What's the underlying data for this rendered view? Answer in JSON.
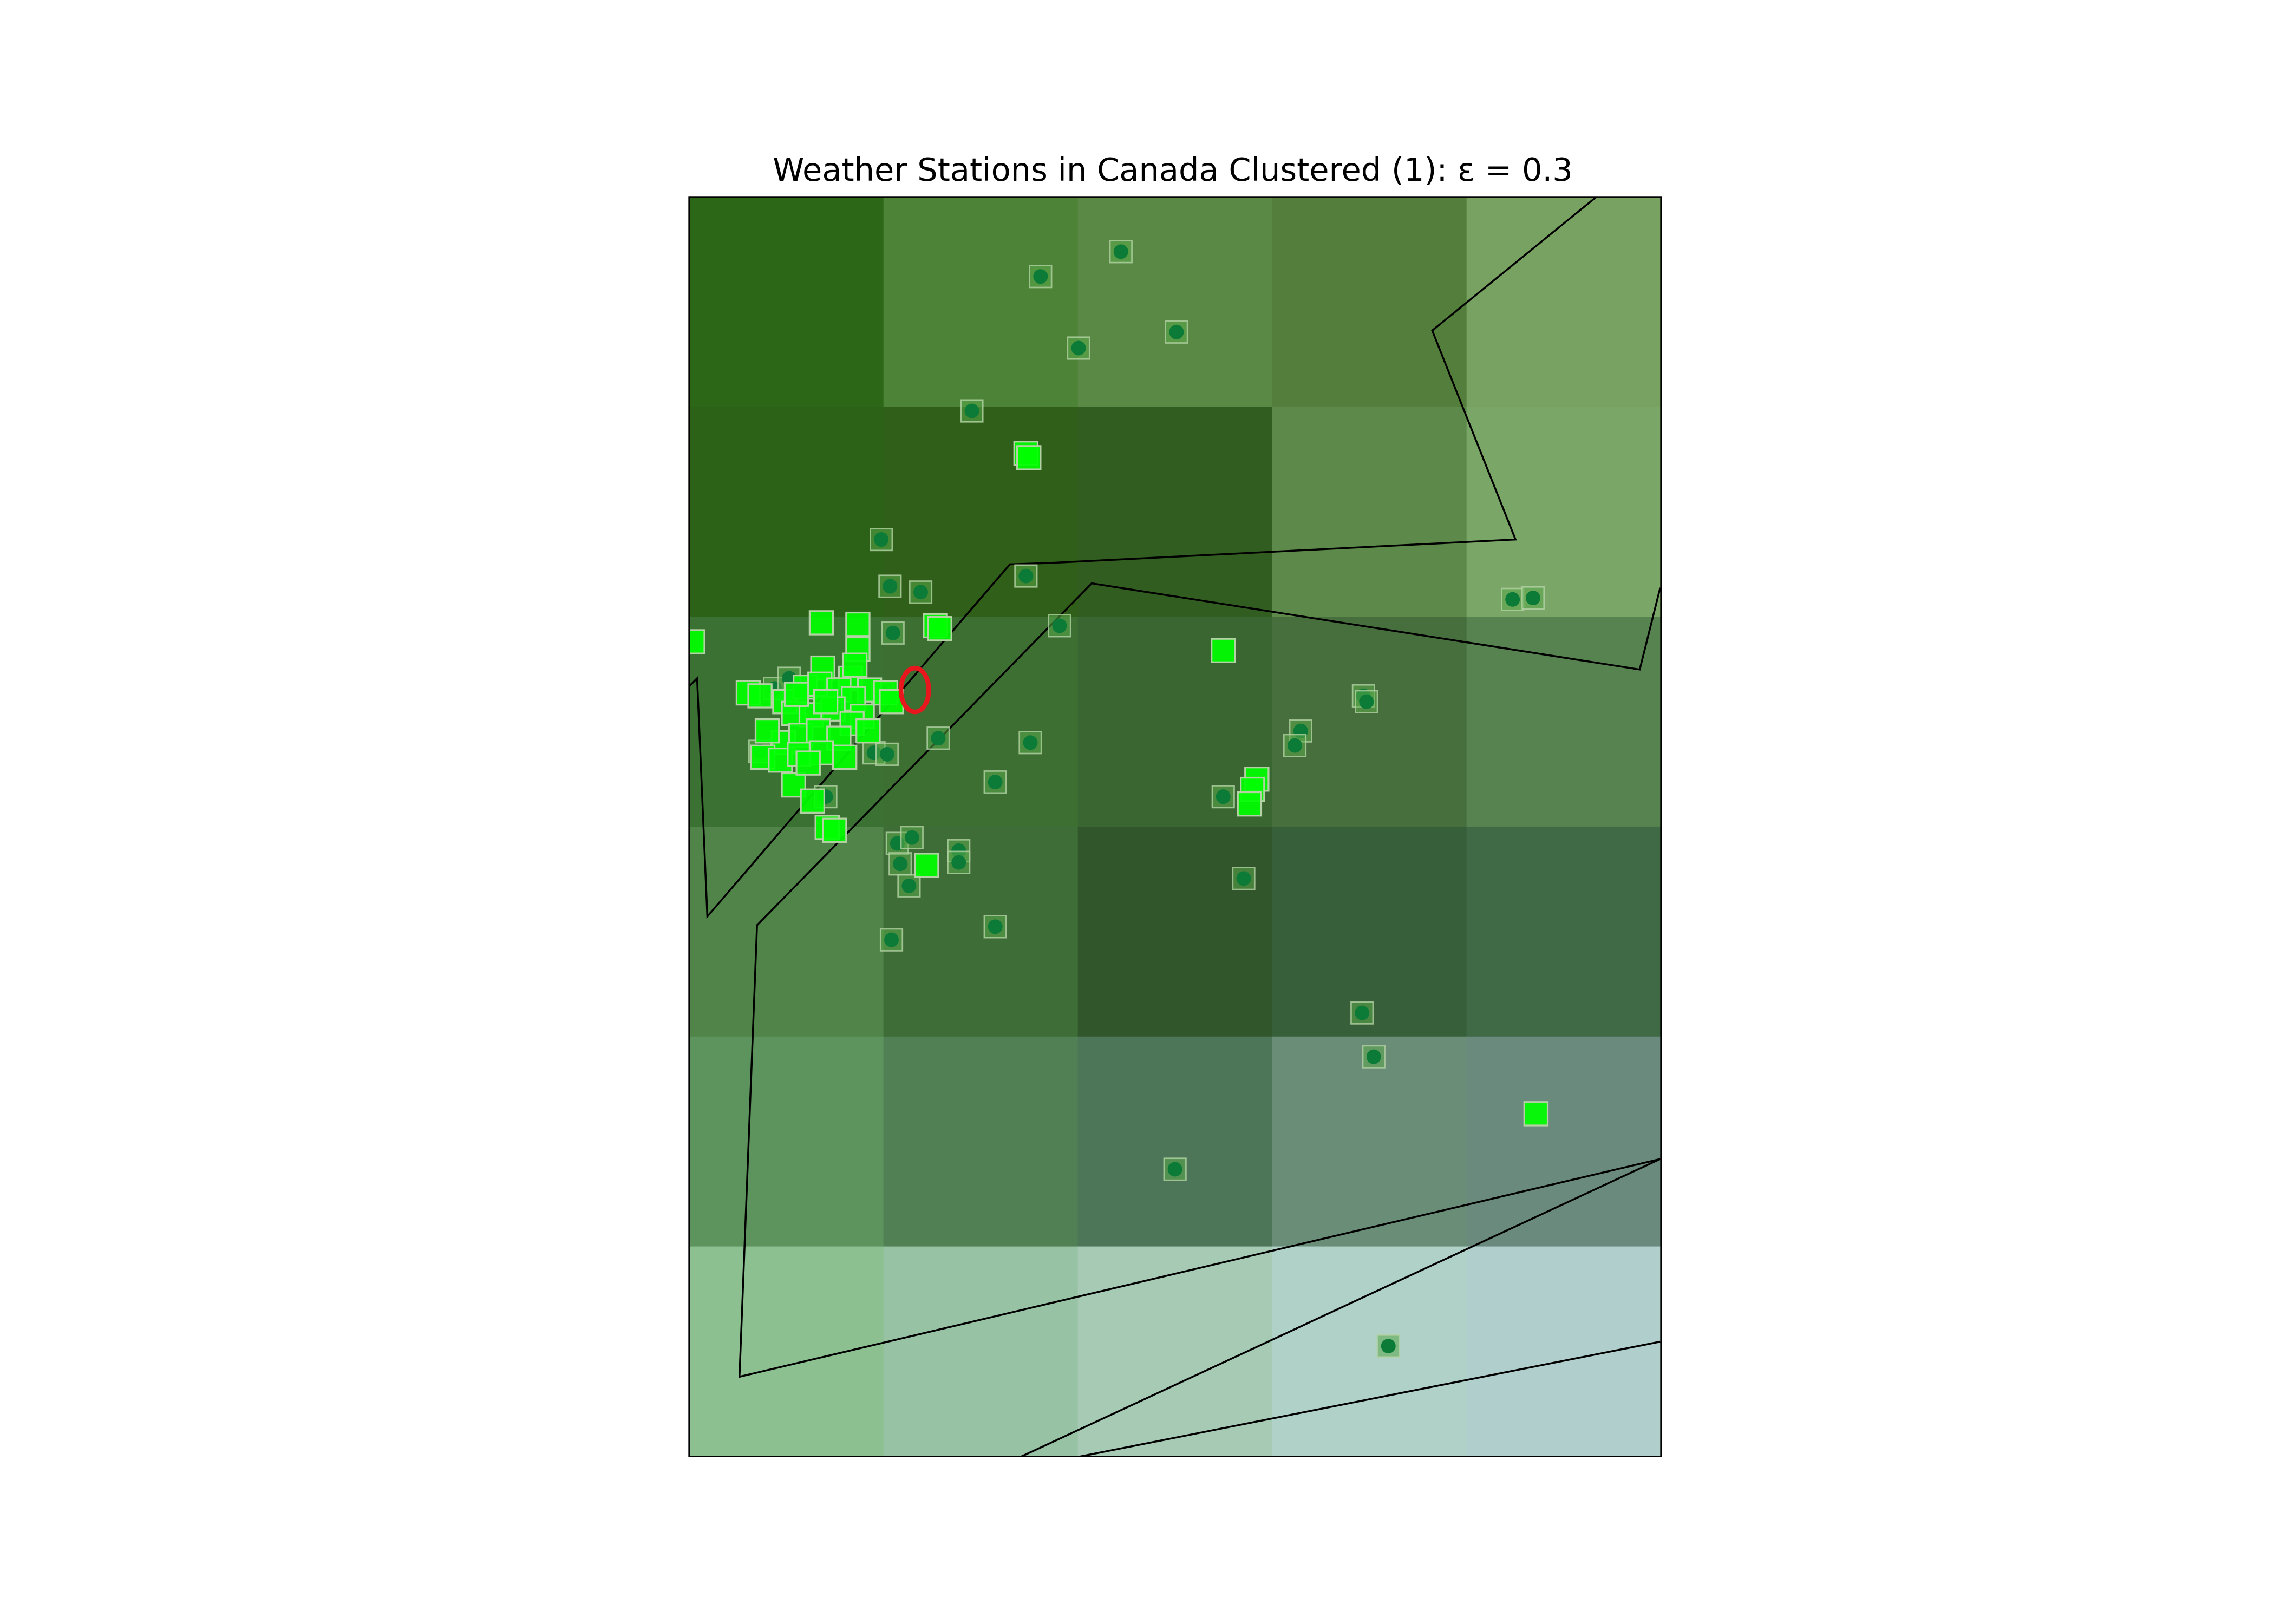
{
  "title": "Weather Stations in Canada Clustered (1): ε = 0.3",
  "map": {
    "type": "scatter-map",
    "basemap": "shaded relief raster",
    "coastlines": true,
    "grid": false,
    "axis_ticks": false,
    "relief_grid": [
      [
        "#2c6617",
        "#4c8336",
        "#598944",
        "#537e3b",
        "#77a261"
      ],
      [
        "#2c6118",
        "#2f5f18",
        "#325d21",
        "#5d8a4b",
        "#7aa668"
      ],
      [
        "#3b7133",
        "#3d6f33",
        "#3a6632",
        "#476f3d",
        "#578350"
      ],
      [
        "#508448",
        "#3f6d38",
        "#32562c",
        "#37603a",
        "#406a46"
      ],
      [
        "#5d935c",
        "#518055",
        "#4d7557",
        "#6a8d78",
        "#6a8a7d"
      ],
      [
        "#8cc090",
        "#97c2a3",
        "#a6cab4",
        "#b0d1c8",
        "#b0cfcc"
      ]
    ],
    "outline_color": "#000000",
    "legend": "none"
  },
  "stations": {
    "clustered_color": "#00ff00",
    "noise_color": "#0b7b37",
    "marker_edge": "#b4d2a5",
    "noise": [
      [
        767,
        172
      ],
      [
        712,
        189
      ],
      [
        738,
        238
      ],
      [
        805,
        227
      ],
      [
        665,
        281
      ],
      [
        603,
        369
      ],
      [
        609,
        401
      ],
      [
        630,
        405
      ],
      [
        702,
        394
      ],
      [
        725,
        428
      ],
      [
        1035,
        410
      ],
      [
        1049,
        409
      ],
      [
        611,
        433
      ],
      [
        642,
        505
      ],
      [
        705,
        508
      ],
      [
        681,
        535
      ],
      [
        837,
        545
      ],
      [
        851,
        601
      ],
      [
        890,
        500
      ],
      [
        886,
        510
      ],
      [
        933,
        476
      ],
      [
        935,
        480
      ],
      [
        614,
        577
      ],
      [
        624,
        573
      ],
      [
        616,
        591
      ],
      [
        656,
        582
      ],
      [
        656,
        590
      ],
      [
        622,
        606
      ],
      [
        681,
        634
      ],
      [
        610,
        643
      ],
      [
        932,
        693
      ],
      [
        940,
        723
      ],
      [
        804,
        800
      ],
      [
        950,
        921
      ],
      [
        530,
        471
      ],
      [
        540,
        464
      ],
      [
        598,
        515
      ],
      [
        607,
        516
      ],
      [
        520,
        514
      ],
      [
        565,
        545
      ],
      [
        572,
        471
      ],
      [
        604,
        474
      ]
    ],
    "clustered": [
      [
        702,
        310
      ],
      [
        704,
        313
      ],
      [
        474,
        439
      ],
      [
        837,
        445
      ],
      [
        562,
        426
      ],
      [
        587,
        427
      ],
      [
        640,
        428
      ],
      [
        643,
        430
      ],
      [
        587,
        444
      ],
      [
        563,
        457
      ],
      [
        582,
        464
      ],
      [
        595,
        472
      ],
      [
        606,
        474
      ],
      [
        512,
        474
      ],
      [
        520,
        476
      ],
      [
        537,
        480
      ],
      [
        551,
        470
      ],
      [
        561,
        468
      ],
      [
        574,
        472
      ],
      [
        584,
        478
      ],
      [
        543,
        488
      ],
      [
        555,
        489
      ],
      [
        570,
        485
      ],
      [
        590,
        490
      ],
      [
        583,
        495
      ],
      [
        536,
        508
      ],
      [
        548,
        503
      ],
      [
        560,
        500
      ],
      [
        574,
        505
      ],
      [
        522,
        518
      ],
      [
        534,
        520
      ],
      [
        547,
        516
      ],
      [
        562,
        515
      ],
      [
        578,
        518
      ],
      [
        543,
        537
      ],
      [
        556,
        548
      ],
      [
        566,
        566
      ],
      [
        571,
        568
      ],
      [
        634,
        592
      ],
      [
        860,
        533
      ],
      [
        857,
        540
      ],
      [
        855,
        550
      ],
      [
        1051,
        762
      ],
      [
        585,
        455
      ],
      [
        565,
        480
      ],
      [
        525,
        500
      ],
      [
        553,
        522
      ],
      [
        594,
        500
      ],
      [
        610,
        480
      ],
      [
        545,
        475
      ]
    ],
    "highlight_marker": {
      "color": "#e8161d",
      "shape": "ellipse"
    }
  }
}
